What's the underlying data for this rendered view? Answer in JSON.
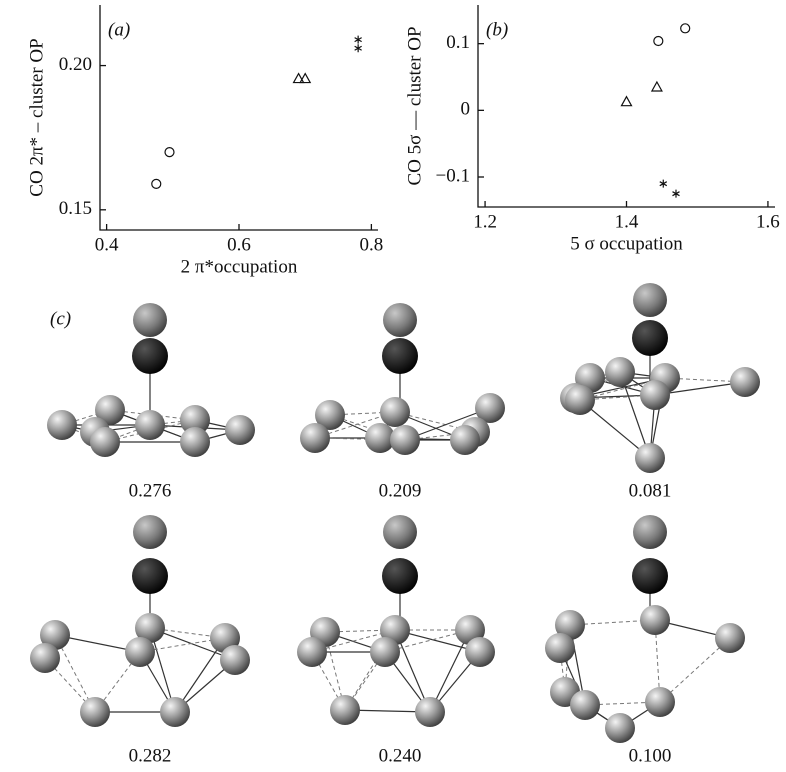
{
  "chart_data": [
    {
      "type": "scatter",
      "panel_label": "(a)",
      "x_label": "2 π*occupation",
      "y_label": "CO 2π* – cluster OP",
      "xlim": [
        0.39,
        0.81
      ],
      "ylim": [
        0.143,
        0.221
      ],
      "xticks": [
        0.4,
        0.6,
        0.8
      ],
      "yticks": [
        0.15,
        {
          "value": 0.2,
          "label": "0.20"
        }
      ],
      "series": [
        {
          "marker": "circle",
          "color": "#111111",
          "x": [
            0.475,
            0.495
          ],
          "values": [
            0.159,
            0.17
          ]
        },
        {
          "marker": "triangle",
          "color": "#111111",
          "x": [
            0.69,
            0.7
          ],
          "values": [
            0.1955,
            0.1955
          ]
        },
        {
          "marker": "star",
          "color": "#111111",
          "x": [
            0.78,
            0.78
          ],
          "values": [
            0.209,
            0.206
          ]
        }
      ]
    },
    {
      "type": "scatter",
      "panel_label": "(b)",
      "x_label": "5 σ occupation",
      "y_label": "CO 5σ — cluster OP",
      "xlim": [
        1.19,
        1.61
      ],
      "ylim": [
        -0.145,
        0.158
      ],
      "xticks": [
        1.2,
        1.4,
        1.6
      ],
      "yticks": [
        0.1,
        0,
        {
          "value": -0.1,
          "label": "−0.1"
        }
      ],
      "series": [
        {
          "marker": "circle",
          "color": "#111111",
          "x": [
            1.445,
            1.483
          ],
          "values": [
            0.104,
            0.123
          ]
        },
        {
          "marker": "triangle",
          "color": "#111111",
          "x": [
            1.4,
            1.443
          ],
          "values": [
            0.013,
            0.035
          ]
        },
        {
          "marker": "star",
          "color": "#111111",
          "x": [
            1.452,
            1.47
          ],
          "values": [
            -0.11,
            -0.125
          ]
        }
      ]
    }
  ],
  "panel_c": {
    "label": "(c)",
    "captions": [
      "0.276",
      "0.209",
      "0.081",
      "0.282",
      "0.240",
      "0.100"
    ]
  }
}
